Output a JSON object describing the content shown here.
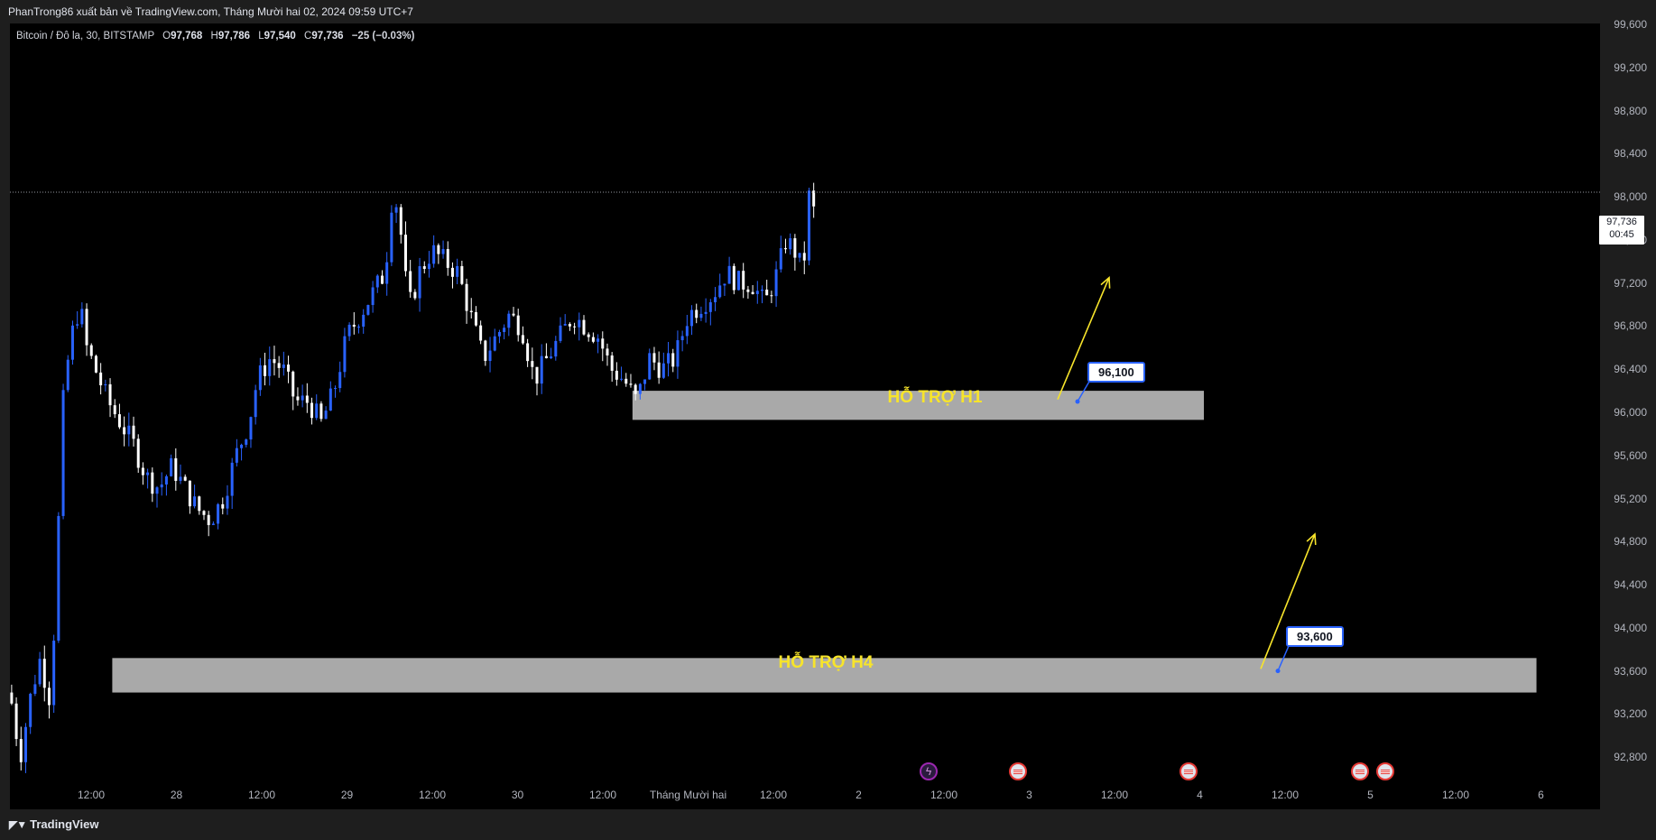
{
  "header": {
    "publish_text": "PhanTrong86 xuất bản về TradingView.com, Tháng Mười hai 02, 2024 09:59 UTC+7"
  },
  "legend": {
    "symbol": "Bitcoin / Đô la, 30, BITSTAMP",
    "o_label": "O",
    "o_value": "97,768",
    "h_label": "H",
    "h_value": "97,786",
    "l_label": "L",
    "l_value": "97,540",
    "c_label": "C",
    "c_value": "97,736",
    "change": "−25 (−0.03%)"
  },
  "price_tag": {
    "price": "97,736",
    "countdown": "00:45"
  },
  "footer": {
    "brand": "TradingView"
  },
  "colors": {
    "up": "#2962ff",
    "down": "#ffffff",
    "zone": "#b2b2b2",
    "zone_text": "#f7e42b",
    "arrow": "#f7e42b",
    "background": "#000000"
  },
  "chart_data": {
    "type": "candlestick",
    "symbol": "Bitcoin / Đô la, 30, BITSTAMP",
    "ylim": [
      92400,
      99600
    ],
    "y_ticks": [
      "99,600",
      "99,200",
      "98,800",
      "98,400",
      "98,000",
      "97,600",
      "97,200",
      "96,800",
      "96,400",
      "96,000",
      "95,600",
      "95,200",
      "94,800",
      "94,400",
      "94,000",
      "93,600",
      "93,200",
      "92,800"
    ],
    "x_ticks": [
      "12:00",
      "28",
      "12:00",
      "29",
      "12:00",
      "30",
      "12:00",
      "Tháng Mười hai",
      "12:00",
      "2",
      "12:00",
      "3",
      "12:00",
      "4",
      "12:00",
      "5",
      "12:00",
      "6"
    ],
    "last_price": 97736,
    "price_path": [
      [
        0,
        93400
      ],
      [
        1.2,
        92800
      ],
      [
        2.5,
        93400
      ],
      [
        3.5,
        93700
      ],
      [
        4.2,
        93500
      ],
      [
        4.8,
        93300
      ],
      [
        5.5,
        94600
      ],
      [
        6.3,
        96200
      ],
      [
        7.2,
        96700
      ],
      [
        8.2,
        97000
      ],
      [
        9,
        96600
      ],
      [
        10,
        96400
      ],
      [
        11.5,
        96100
      ],
      [
        13,
        95900
      ],
      [
        14.5,
        95700
      ],
      [
        16,
        95400
      ],
      [
        17.5,
        95300
      ],
      [
        19,
        95500
      ],
      [
        20.5,
        95300
      ],
      [
        22,
        95100
      ],
      [
        23.5,
        95000
      ],
      [
        25,
        95200
      ],
      [
        26.5,
        95600
      ],
      [
        28,
        95900
      ],
      [
        29,
        96300
      ],
      [
        30.5,
        96500
      ],
      [
        32,
        96400
      ],
      [
        33.5,
        96100
      ],
      [
        35,
        96100
      ],
      [
        36.5,
        95900
      ],
      [
        38,
        96200
      ],
      [
        39.5,
        96700
      ],
      [
        41,
        96900
      ],
      [
        42.5,
        97100
      ],
      [
        44,
        97300
      ],
      [
        44.8,
        98000
      ],
      [
        45.6,
        97900
      ],
      [
        46.2,
        97300
      ],
      [
        47,
        97000
      ],
      [
        48,
        97300
      ],
      [
        49.5,
        97500
      ],
      [
        51,
        97400
      ],
      [
        52.5,
        97300
      ],
      [
        54,
        96900
      ],
      [
        55.5,
        96500
      ],
      [
        57,
        96700
      ],
      [
        58.5,
        96900
      ],
      [
        60,
        96800
      ],
      [
        61.5,
        96300
      ],
      [
        63,
        96500
      ],
      [
        64.5,
        96700
      ],
      [
        66,
        96900
      ],
      [
        67.5,
        96800
      ],
      [
        69,
        96700
      ],
      [
        70.5,
        96400
      ],
      [
        72,
        96300
      ],
      [
        73.5,
        96100
      ],
      [
        75,
        96500
      ],
      [
        76.5,
        96400
      ],
      [
        78,
        96500
      ],
      [
        79.5,
        96900
      ],
      [
        81,
        97000
      ],
      [
        82.5,
        97100
      ],
      [
        84,
        97300
      ],
      [
        85.5,
        97200
      ],
      [
        87,
        97200
      ],
      [
        88.5,
        97000
      ],
      [
        90,
        97300
      ],
      [
        91,
        97600
      ],
      [
        92,
        97500
      ],
      [
        93,
        97300
      ],
      [
        93.8,
        98100
      ],
      [
        94.5,
        97736
      ]
    ],
    "total_x_units": 180,
    "zones": [
      {
        "label": "HỖ TRỢ H1",
        "top": 96200,
        "bottom": 95930,
        "x_start": 73,
        "x_end": 140
      },
      {
        "label": "HỖ TRỢ H4",
        "top": 93720,
        "bottom": 93400,
        "x_start": 12,
        "x_end": 179
      }
    ],
    "callouts": [
      {
        "text": "96,100",
        "price": 96100
      },
      {
        "text": "93,600",
        "price": 93600
      }
    ],
    "annotations": [
      "HỖ TRỢ H1",
      "HỖ TRỢ H4",
      "96,100",
      "93,600"
    ]
  }
}
